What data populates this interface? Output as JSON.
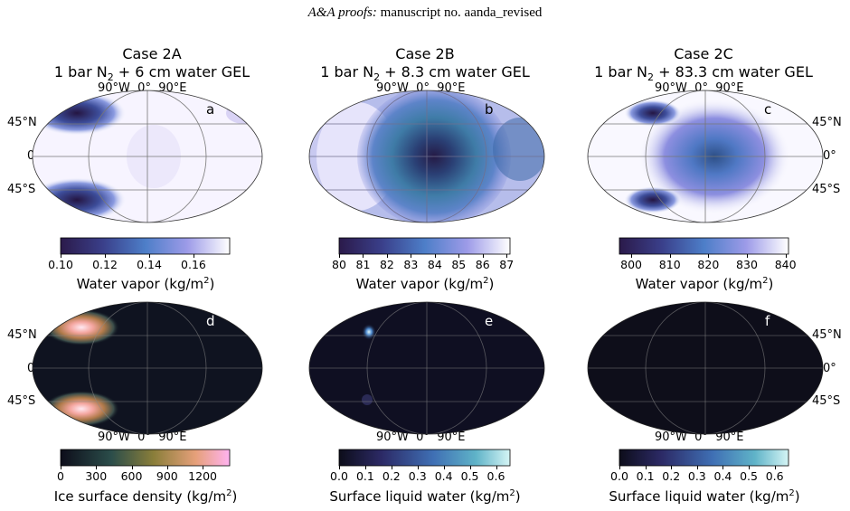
{
  "header": {
    "italic": "A&A proofs:",
    "rest": " manuscript no. aanda_revised"
  },
  "panels_top": [
    {
      "case": "Case 2A",
      "gel_pre": "1 bar N",
      "gel_sub": "2",
      "gel_post": " + 6 cm water GEL",
      "letter": "a",
      "colorbar_label": "Water vapor (kg/m",
      "colorbar_sup": "2",
      "colorbar_close": ")",
      "ticks": [
        "0.10",
        "0.12",
        "0.14",
        "0.16"
      ]
    },
    {
      "case": "Case 2B",
      "gel_pre": "1 bar N",
      "gel_sub": "2",
      "gel_post": " + 8.3 cm water GEL",
      "letter": "b",
      "colorbar_label": "Water vapor (kg/m",
      "colorbar_sup": "2",
      "colorbar_close": ")",
      "ticks": [
        "80",
        "81",
        "82",
        "83",
        "84",
        "85",
        "86",
        "87"
      ]
    },
    {
      "case": "Case 2C",
      "gel_pre": "1 bar N",
      "gel_sub": "2",
      "gel_post": " + 83.3 cm water GEL",
      "letter": "c",
      "colorbar_label": "Water vapor (kg/m",
      "colorbar_sup": "2",
      "colorbar_close": ")",
      "ticks": [
        "800",
        "810",
        "820",
        "830",
        "840"
      ]
    }
  ],
  "panels_bottom": [
    {
      "letter": "d",
      "colorbar_label": "Ice surface density (kg/m",
      "colorbar_sup": "2",
      "colorbar_close": ")",
      "ticks": [
        "0",
        "300",
        "600",
        "900",
        "1200"
      ]
    },
    {
      "letter": "e",
      "colorbar_label": "Surface liquid water (kg/m",
      "colorbar_sup": "2",
      "colorbar_close": ")",
      "ticks": [
        "0.0",
        "0.1",
        "0.2",
        "0.3",
        "0.4",
        "0.5",
        "0.6"
      ]
    },
    {
      "letter": "f",
      "colorbar_label": "Surface liquid water (kg/m",
      "colorbar_sup": "2",
      "colorbar_close": ")",
      "ticks": [
        "0.0",
        "0.1",
        "0.2",
        "0.3",
        "0.4",
        "0.5",
        "0.6"
      ]
    }
  ],
  "lon_labels": [
    "90°W",
    "0°",
    "90°E"
  ],
  "lat_labels": [
    "45°N",
    "0°",
    "45°S"
  ],
  "colors": {
    "vapor_low": "#2b1a4a",
    "vapor_mid": "#4a6fc4",
    "vapor_high": "#ffffff",
    "ice_low": "#0d0d1a",
    "ice_high": "#ffb3e6",
    "liquid_low": "#0d0d1a",
    "liquid_high": "#c8f0f0"
  }
}
